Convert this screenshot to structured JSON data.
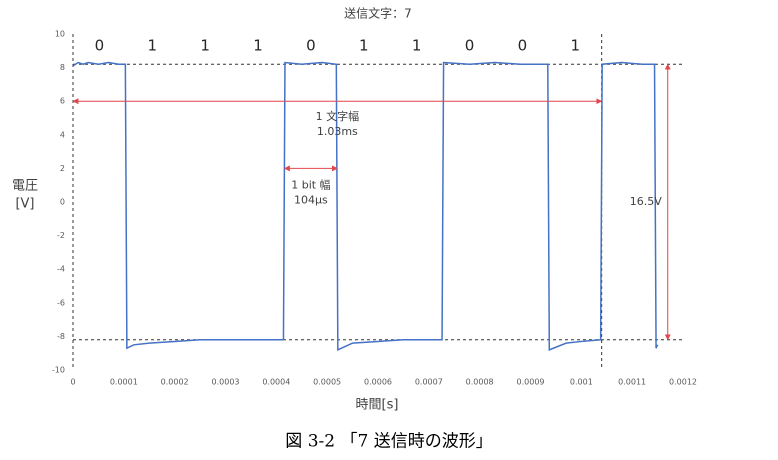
{
  "chart_data": {
    "type": "line",
    "title": "送信文字：7",
    "xlabel": "時間[s]",
    "ylabel": [
      "電圧",
      "[V]"
    ],
    "caption": "図 3-2 「7 送信時の波形」",
    "xlim": [
      0,
      0.0012
    ],
    "xticks": [
      0,
      0.0001,
      0.0002,
      0.0003,
      0.0004,
      0.0005,
      0.0006,
      0.0007,
      0.0008,
      0.0009,
      0.001,
      0.0011,
      0.0012
    ],
    "ylim": [
      -10,
      10
    ],
    "yticks": [
      -10,
      -8,
      -6,
      -4,
      -2,
      0,
      2,
      4,
      6,
      8,
      10
    ],
    "color": "#4472c4",
    "annotation_color": "#e0474c",
    "x": [
      0,
      1e-05,
      2e-05,
      3e-05,
      5e-05,
      7e-05,
      9e-05,
      0.000103,
      0.000106,
      0.00012,
      0.00015,
      0.0002,
      0.00025,
      0.0003,
      0.00035,
      0.0004,
      0.000414,
      0.000417,
      0.00045,
      0.00049,
      0.000518,
      0.000521,
      0.00055,
      0.0006,
      0.00065,
      0.0007,
      0.000726,
      0.000729,
      0.00078,
      0.00083,
      0.00088,
      0.000934,
      0.000937,
      0.00097,
      0.001,
      0.001038,
      0.001041,
      0.00108,
      0.00112,
      0.001144,
      0.001147,
      0.00115
    ],
    "values": [
      8.1,
      8.3,
      8.2,
      8.3,
      8.2,
      8.3,
      8.2,
      8.2,
      -8.7,
      -8.5,
      -8.4,
      -8.3,
      -8.2,
      -8.2,
      -8.2,
      -8.2,
      -8.2,
      8.3,
      8.2,
      8.3,
      8.2,
      -8.8,
      -8.4,
      -8.3,
      -8.2,
      -8.2,
      -8.2,
      8.3,
      8.2,
      8.3,
      8.2,
      8.2,
      -8.8,
      -8.4,
      -8.3,
      -8.2,
      8.2,
      8.3,
      8.2,
      8.2,
      -8.7,
      -8.5
    ],
    "reference_lines": {
      "y": [
        8.2,
        -8.2
      ],
      "x": [
        0,
        0.00104
      ]
    },
    "bit_labels": [
      "0",
      "1",
      "1",
      "1",
      "0",
      "1",
      "1",
      "0",
      "0",
      "1"
    ],
    "char_width": {
      "label": [
        "1 文字幅",
        "1.03ms"
      ],
      "y": 6,
      "x": [
        0,
        0.00104
      ]
    },
    "bit_width": {
      "label": [
        "1 bit 幅",
        "104μs"
      ],
      "y": 2,
      "x": [
        0.000416,
        0.00052
      ]
    },
    "amplitude": {
      "label": "16.5V",
      "x": 0.00117,
      "y": [
        8.2,
        -8.2
      ]
    }
  }
}
